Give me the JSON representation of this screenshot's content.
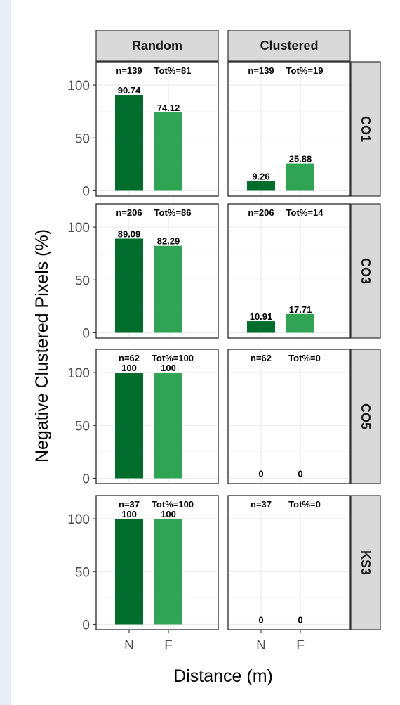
{
  "colors": {
    "page_background": "#e9ecf5",
    "dark_green": "#006d2c",
    "light_green": "#31a354",
    "strip_fill": "#d9d9d9",
    "panel_fill": "#ffffff"
  },
  "chart_data": {
    "type": "bar",
    "title": "",
    "xlabel": "Distance (m)",
    "ylabel": "Negative Clustered Pixels (%)",
    "ylim": [
      -5,
      122
    ],
    "y_ticks": [
      "0",
      "50",
      "100"
    ],
    "y_tick_values": [
      0,
      50,
      100
    ],
    "categories": [
      "N",
      "F"
    ],
    "bar_colors": [
      "#006d2c",
      "#31a354"
    ],
    "grid": true,
    "columns": [
      "Random",
      "Clustered"
    ],
    "rows": [
      "CO1",
      "CO3",
      "CO5",
      "KS3"
    ],
    "panels": [
      {
        "row": "CO1",
        "column": "Random",
        "n": "n=139",
        "tot": "Tot%=81",
        "values": [
          90.74,
          74.12
        ],
        "labels": [
          "90.74",
          "74.12"
        ]
      },
      {
        "row": "CO1",
        "column": "Clustered",
        "n": "n=139",
        "tot": "Tot%=19",
        "values": [
          9.26,
          25.88
        ],
        "labels": [
          "9.26",
          "25.88"
        ]
      },
      {
        "row": "CO3",
        "column": "Random",
        "n": "n=206",
        "tot": "Tot%=86",
        "values": [
          89.09,
          82.29
        ],
        "labels": [
          "89.09",
          "82.29"
        ]
      },
      {
        "row": "CO3",
        "column": "Clustered",
        "n": "n=206",
        "tot": "Tot%=14",
        "values": [
          10.91,
          17.71
        ],
        "labels": [
          "10.91",
          "17.71"
        ]
      },
      {
        "row": "CO5",
        "column": "Random",
        "n": "n=62",
        "tot": "Tot%=100",
        "values": [
          100,
          100
        ],
        "labels": [
          "100",
          "100"
        ]
      },
      {
        "row": "CO5",
        "column": "Clustered",
        "n": "n=62",
        "tot": "Tot%=0",
        "values": [
          0,
          0
        ],
        "labels": [
          "0",
          "0"
        ]
      },
      {
        "row": "KS3",
        "column": "Random",
        "n": "n=37",
        "tot": "Tot%=100",
        "values": [
          100,
          100
        ],
        "labels": [
          "100",
          "100"
        ]
      },
      {
        "row": "KS3",
        "column": "Clustered",
        "n": "n=37",
        "tot": "Tot%=0",
        "values": [
          0,
          0
        ],
        "labels": [
          "0",
          "0"
        ]
      }
    ]
  }
}
